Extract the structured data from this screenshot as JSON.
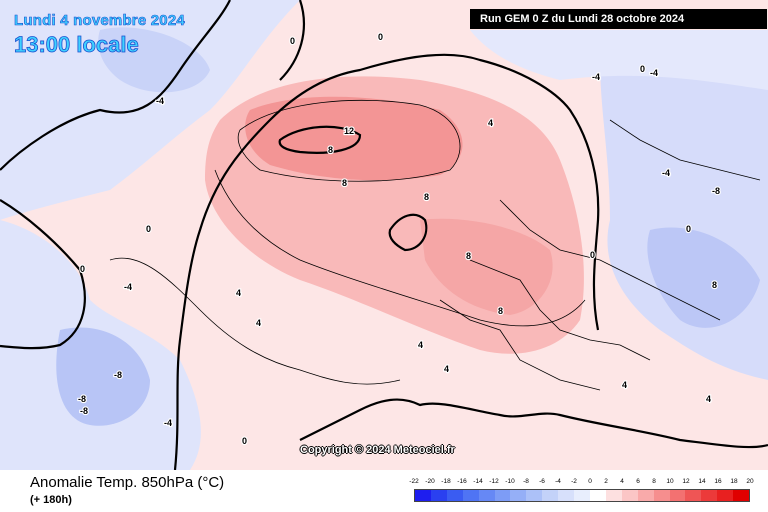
{
  "header": {
    "date": "Lundi 4 novembre 2024",
    "local_time": "13:00 locale",
    "run_info": "Run GEM 0 Z du Lundi 28 octobre 2024"
  },
  "copyright": "Copyright © 2024 Meteociel.fr",
  "legend": {
    "title": "Anomalie Temp. 850hPa (°C)",
    "forecast_hour": "(+ 180h)",
    "scale_values": [
      "-22",
      "-20",
      "-18",
      "-16",
      "-14",
      "-12",
      "-10",
      "-8",
      "-6",
      "-4",
      "-2",
      "0",
      "2",
      "4",
      "6",
      "8",
      "10",
      "12",
      "14",
      "16",
      "18",
      "20"
    ],
    "scale_colors": [
      "#1e1eef",
      "#2a40f0",
      "#3a5cf2",
      "#4f74f4",
      "#6688f5",
      "#7d9cf6",
      "#95aff7",
      "#acc1f8",
      "#c3d2f9",
      "#d7e0fb",
      "#e8eefd",
      "#ffffff",
      "#fde0e0",
      "#fbc6c6",
      "#f9aaaa",
      "#f68e8e",
      "#f37171",
      "#ef5555",
      "#ec3a3a",
      "#e82020",
      "#e00000"
    ]
  },
  "contour_labels": [
    "12",
    "8",
    "8",
    "8",
    "8",
    "8",
    "8",
    "4",
    "4",
    "4",
    "4",
    "4",
    "4",
    "4",
    "0",
    "0",
    "0",
    "0",
    "0",
    "0",
    "0",
    "0",
    "-4",
    "-4",
    "-4",
    "-4",
    "-4",
    "-4",
    "-8",
    "-8",
    "-8",
    "-8"
  ]
}
